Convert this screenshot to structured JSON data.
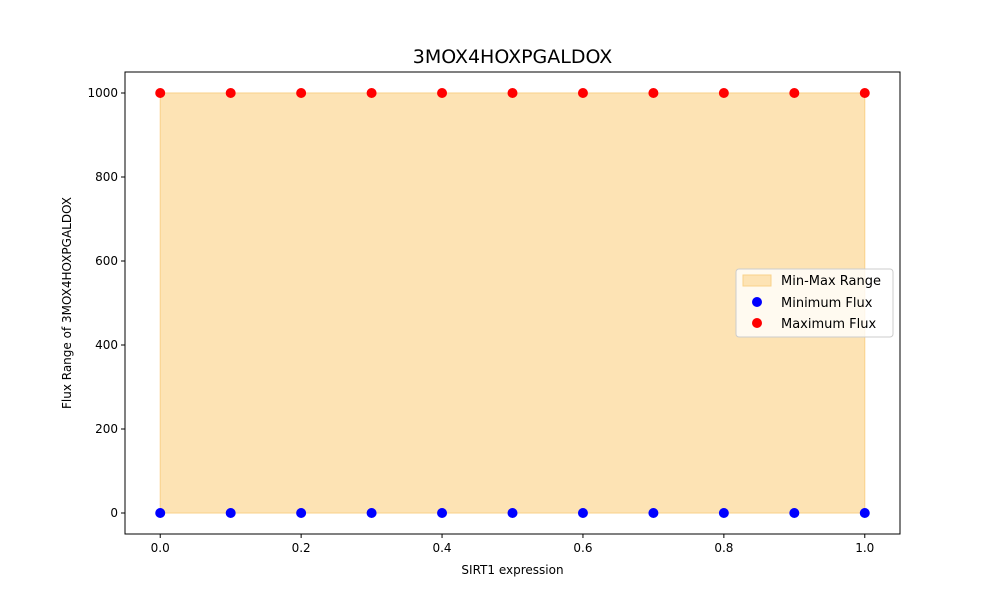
{
  "chart_data": {
    "type": "scatter",
    "title": "3MOX4HOXPGALDOX",
    "xlabel": "SIRT1 expression",
    "ylabel": "Flux Range of 3MOX4HOXPGALDOX",
    "xlim": [
      -0.05,
      1.05
    ],
    "ylim": [
      -50,
      1050
    ],
    "x": [
      0.0,
      0.1,
      0.2,
      0.3,
      0.4,
      0.5,
      0.6,
      0.7,
      0.8,
      0.9,
      1.0
    ],
    "x_ticks": [
      0.0,
      0.2,
      0.4,
      0.6,
      0.8,
      1.0
    ],
    "x_tick_labels": [
      "0.0",
      "0.2",
      "0.4",
      "0.6",
      "0.8",
      "1.0"
    ],
    "y_ticks": [
      0,
      200,
      400,
      600,
      800,
      1000
    ],
    "y_tick_labels": [
      "0",
      "200",
      "400",
      "600",
      "800",
      "1000"
    ],
    "grid": false,
    "legend_position": "center-right",
    "fill": {
      "name": "Min-Max Range",
      "color": "#fde3b4",
      "edge_color": "#f9d18a",
      "lower": [
        0,
        0,
        0,
        0,
        0,
        0,
        0,
        0,
        0,
        0,
        0
      ],
      "upper": [
        1000,
        1000,
        1000,
        1000,
        1000,
        1000,
        1000,
        1000,
        1000,
        1000,
        1000
      ]
    },
    "series": [
      {
        "name": "Minimum Flux",
        "color": "#0000ff",
        "values": [
          0,
          0,
          0,
          0,
          0,
          0,
          0,
          0,
          0,
          0,
          0
        ]
      },
      {
        "name": "Maximum Flux",
        "color": "#ff0000",
        "values": [
          1000,
          1000,
          1000,
          1000,
          1000,
          1000,
          1000,
          1000,
          1000,
          1000,
          1000
        ]
      }
    ]
  }
}
